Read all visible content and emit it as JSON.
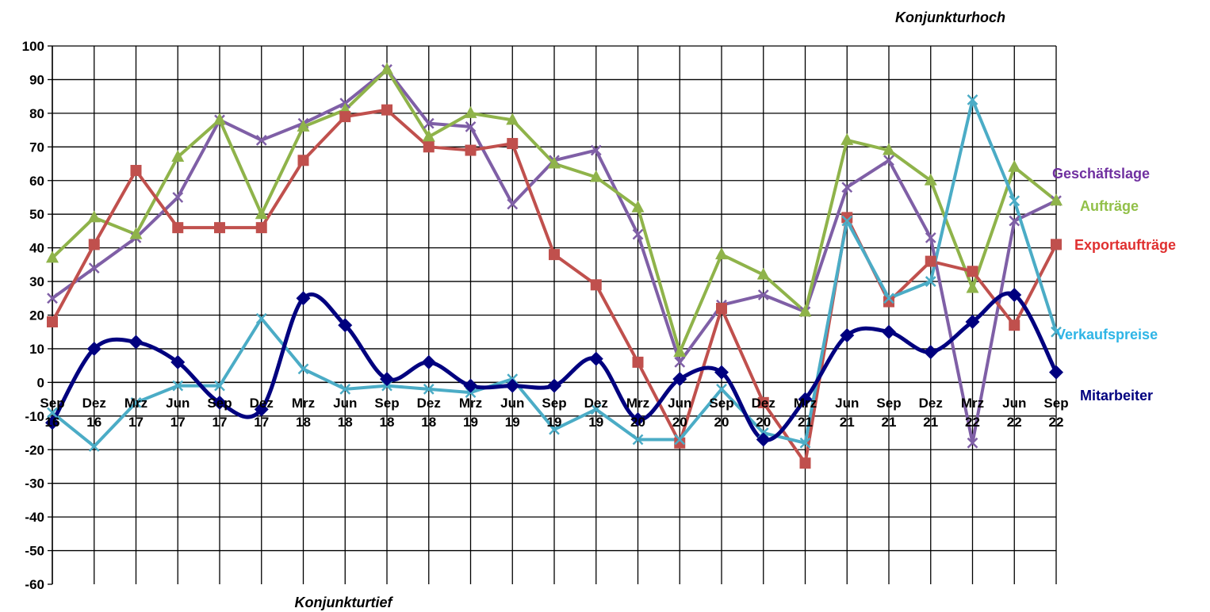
{
  "chart_data": {
    "type": "line",
    "title": "",
    "xlabel": "",
    "ylabel": "",
    "ylim": [
      -60,
      100
    ],
    "ytick_step": 10,
    "grid": true,
    "legend": "right (labels next to series ends)",
    "categories": [
      [
        "Sep",
        "16"
      ],
      [
        "Dez",
        "16"
      ],
      [
        "Mrz",
        "17"
      ],
      [
        "Jun",
        "17"
      ],
      [
        "Sep",
        "17"
      ],
      [
        "Dez",
        "17"
      ],
      [
        "Mrz",
        "18"
      ],
      [
        "Jun",
        "18"
      ],
      [
        "Sep",
        "18"
      ],
      [
        "Dez",
        "18"
      ],
      [
        "Mrz",
        "19"
      ],
      [
        "Jun",
        "19"
      ],
      [
        "Sep",
        "19"
      ],
      [
        "Dez",
        "19"
      ],
      [
        "Mrz",
        "20"
      ],
      [
        "Jun",
        "20"
      ],
      [
        "Sep",
        "20"
      ],
      [
        "Dez",
        "20"
      ],
      [
        "Mrz",
        "21"
      ],
      [
        "Jun",
        "21"
      ],
      [
        "Sep",
        "21"
      ],
      [
        "Dez",
        "21"
      ],
      [
        "Mrz",
        "22"
      ],
      [
        "Jun",
        "22"
      ],
      [
        "Sep",
        "22"
      ]
    ],
    "annotations": {
      "top": "Konjunkturhoch",
      "bottom": "Konjunkturtief"
    },
    "series": [
      {
        "name": "Geschäftslage",
        "color": "#7f5fa6",
        "marker": "x",
        "smooth": false,
        "values": [
          25,
          34,
          43,
          55,
          78,
          72,
          77,
          83,
          93,
          77,
          76,
          53,
          66,
          69,
          44,
          6,
          23,
          26,
          21,
          58,
          66,
          43,
          -18,
          48,
          54
        ]
      },
      {
        "name": "Aufträge",
        "color": "#8fb34a",
        "marker": "triangle",
        "smooth": false,
        "values": [
          37,
          49,
          44,
          67,
          78,
          50,
          76,
          81,
          93,
          73,
          80,
          78,
          65,
          61,
          52,
          9,
          38,
          32,
          21,
          72,
          69,
          60,
          28,
          64,
          54
        ]
      },
      {
        "name": "Exportaufträge",
        "color": "#c0504d",
        "marker": "square",
        "smooth": false,
        "values": [
          18,
          41,
          63,
          46,
          46,
          46,
          66,
          79,
          81,
          70,
          69,
          71,
          38,
          29,
          6,
          -18,
          22,
          -6,
          -24,
          49,
          24,
          36,
          33,
          17,
          41
        ]
      },
      {
        "name": "Verkaufspreise",
        "color": "#4bacc6",
        "marker": "x",
        "smooth": false,
        "values": [
          -9,
          -19,
          -6,
          -1,
          -1,
          19,
          4,
          -2,
          -1,
          -2,
          -3,
          1,
          -14,
          -8,
          -17,
          -17,
          -2,
          -15,
          -18,
          48,
          25,
          30,
          84,
          54,
          15
        ]
      },
      {
        "name": "Mitarbeiter",
        "color": "#00007f",
        "marker": "diamond",
        "smooth": true,
        "values": [
          -12,
          10,
          12,
          6,
          -6,
          -8,
          25,
          17,
          1,
          6,
          -1,
          -1,
          -1,
          7,
          -11,
          1,
          3,
          -17,
          -5,
          14,
          15,
          9,
          18,
          26,
          3
        ]
      }
    ]
  }
}
